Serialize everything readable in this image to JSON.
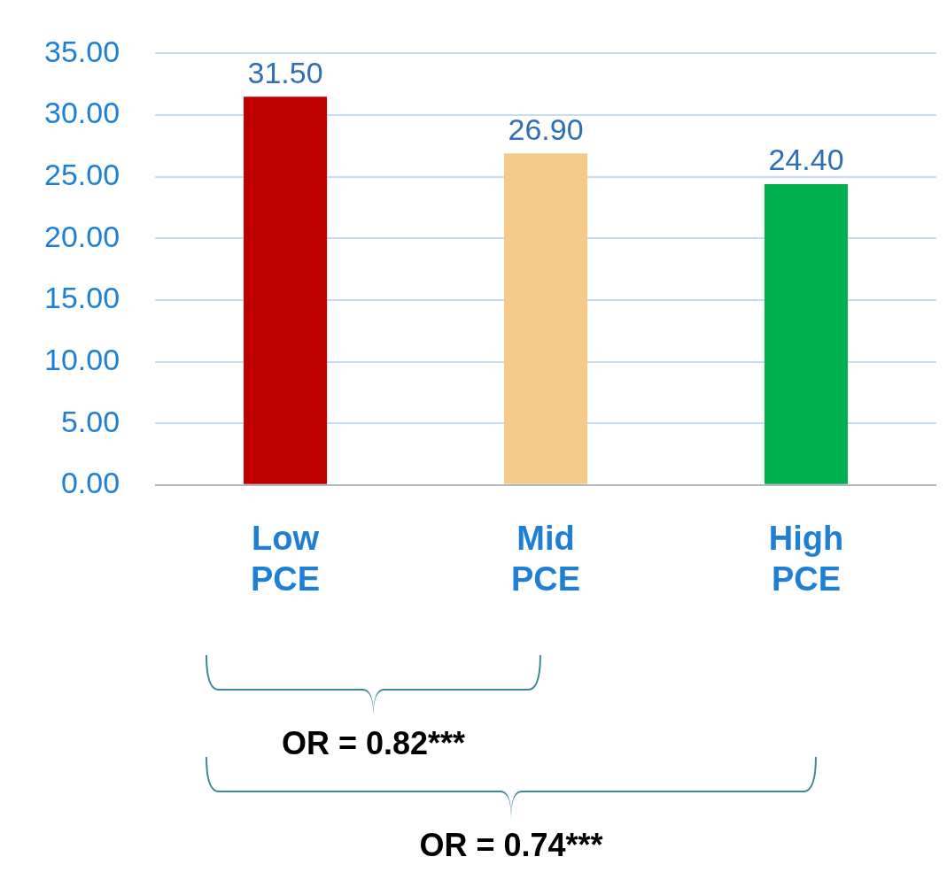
{
  "chart_data": {
    "type": "bar",
    "categories": [
      "Low PCE",
      "Mid PCE",
      "High PCE"
    ],
    "values": [
      31.5,
      26.9,
      24.4
    ],
    "colors": [
      "#c00000",
      "#f4c98a",
      "#00b050"
    ],
    "value_labels": [
      "31.50",
      "26.90",
      "24.40"
    ],
    "ylim": [
      0,
      35
    ],
    "yticks": [
      {
        "value": 0,
        "label": "0.00"
      },
      {
        "value": 5,
        "label": "5.00"
      },
      {
        "value": 10,
        "label": "10.00"
      },
      {
        "value": 15,
        "label": "15.00"
      },
      {
        "value": 20,
        "label": "20.00"
      },
      {
        "value": 25,
        "label": "25.00"
      },
      {
        "value": 30,
        "label": "30.00"
      },
      {
        "value": 35,
        "label": "35.00"
      }
    ],
    "grid": "y",
    "legend": false,
    "annotations": [
      "OR = 0.82***",
      "OR = 0.74***"
    ]
  }
}
